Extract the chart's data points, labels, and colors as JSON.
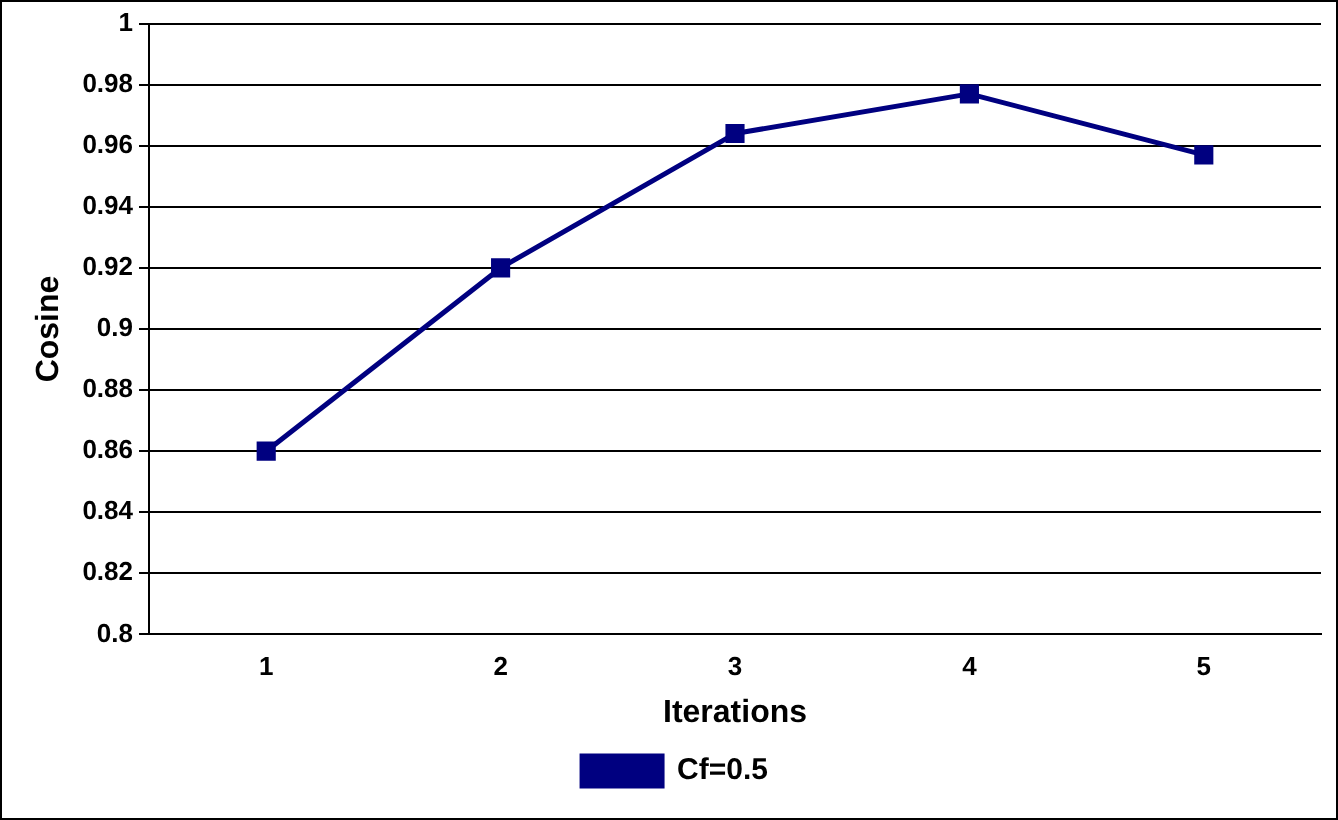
{
  "chart_data": {
    "type": "line",
    "xlabel": "Iterations",
    "ylabel": "Cosine",
    "categories": [
      "1",
      "2",
      "3",
      "4",
      "5"
    ],
    "series": [
      {
        "name": "Cf=0.5",
        "color": "#000080",
        "values": [
          0.86,
          0.92,
          0.964,
          0.977,
          0.957
        ]
      }
    ],
    "ylim": [
      0.8,
      1
    ],
    "yticks": [
      0.8,
      0.82,
      0.84,
      0.86,
      0.88,
      0.9,
      0.92,
      0.94,
      0.96,
      0.98,
      1
    ],
    "grid": "y",
    "legend": "bottom",
    "marker": "square",
    "line_style": "solid"
  }
}
